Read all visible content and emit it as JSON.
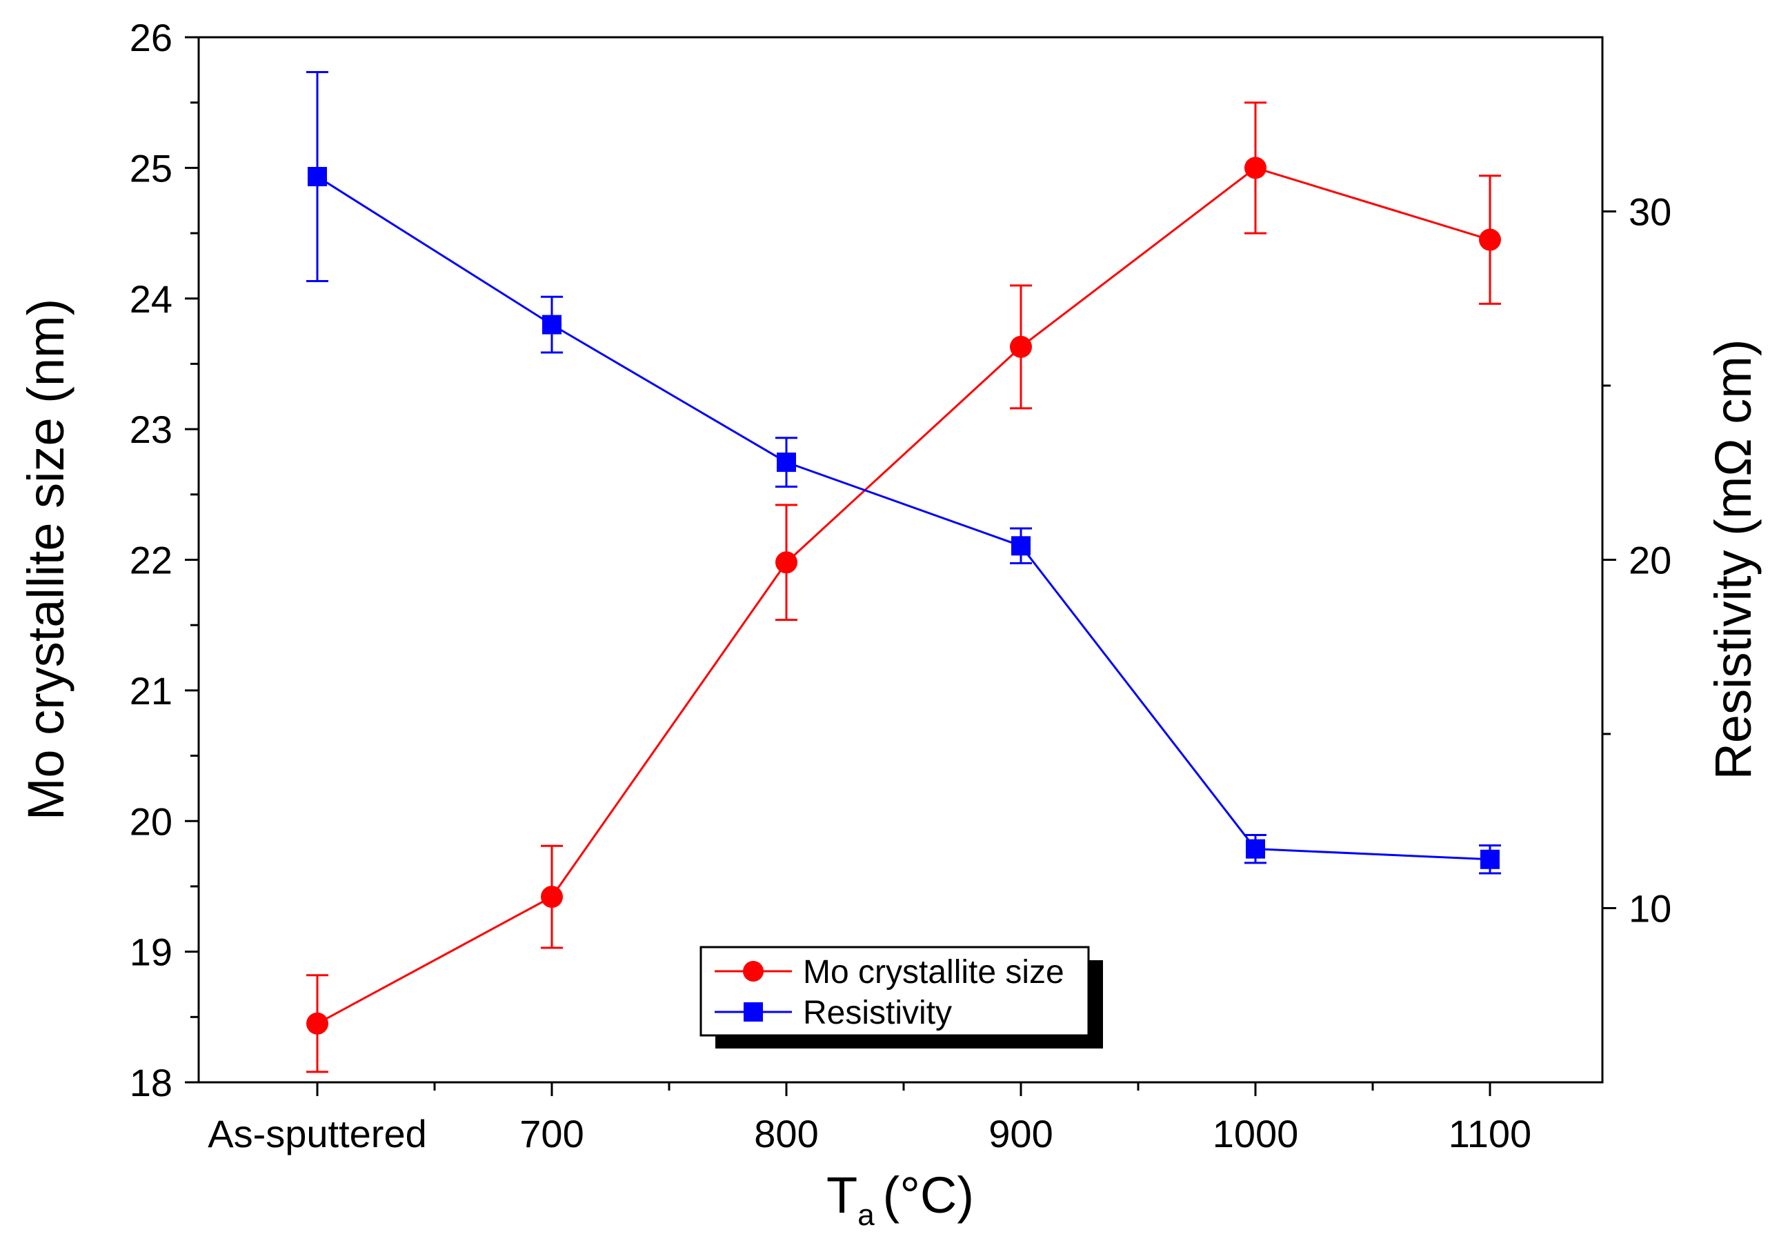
{
  "chart_data": {
    "type": "line",
    "x": [
      "As-sputtered",
      "700",
      "800",
      "900",
      "1000",
      "1100"
    ],
    "xlabel_main": "T",
    "xlabel_sub": "a",
    "xlabel_unit": "(°C)",
    "ylabel": "Mo crystallite size (nm)",
    "y2label": "Resistivity (mΩ cm)",
    "ylim": [
      18,
      26
    ],
    "y2lim": [
      5,
      35
    ],
    "yticks": [
      18,
      19,
      20,
      21,
      22,
      23,
      24,
      25,
      26
    ],
    "y2ticks": [
      10,
      20,
      30
    ],
    "series": [
      {
        "name": "Mo crystallite size",
        "axis": "left",
        "color": "#ff0000",
        "marker": "circle",
        "values": [
          18.45,
          19.42,
          21.98,
          23.63,
          25.0,
          24.45
        ],
        "errors": [
          0.37,
          0.39,
          0.44,
          0.47,
          0.5,
          0.49
        ]
      },
      {
        "name": "Resistivity",
        "axis": "right",
        "color": "#0000ff",
        "marker": "square",
        "values": [
          31.0,
          26.75,
          22.8,
          20.4,
          11.7,
          11.4
        ],
        "errors": [
          3.0,
          0.8,
          0.7,
          0.5,
          0.4,
          0.4
        ]
      }
    ],
    "legend": {
      "position": "bottom-center",
      "entries": [
        "Mo crystallite size",
        "Resistivity"
      ]
    }
  }
}
